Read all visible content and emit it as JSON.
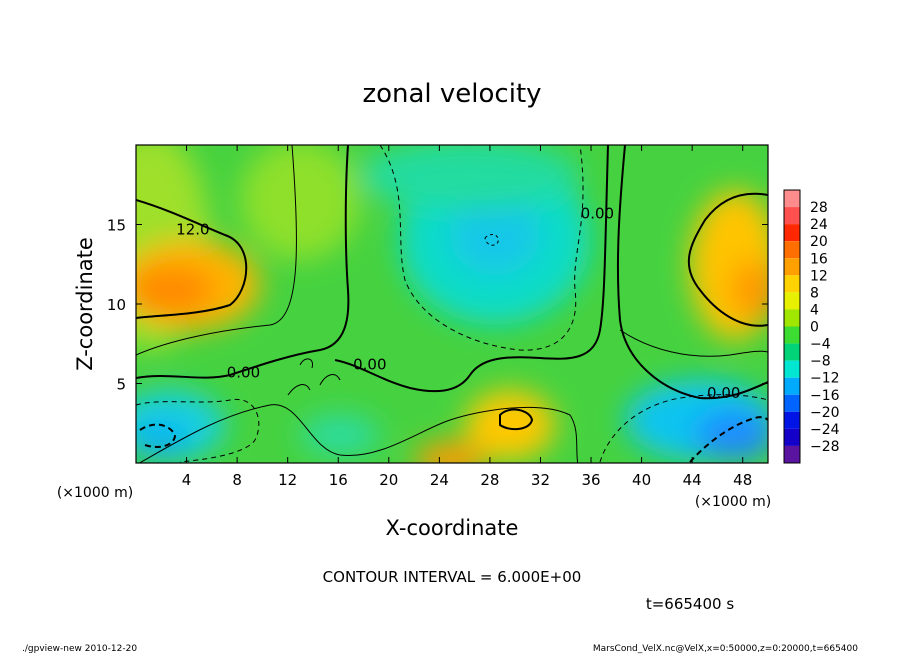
{
  "chart_data": {
    "type": "heatmap",
    "title": "zonal velocity",
    "xlabel": "X-coordinate",
    "ylabel": "Z-coordinate",
    "x_unit": "(×1000 m)",
    "y_unit": "(×1000 m)",
    "x_ticks": [
      4,
      8,
      12,
      16,
      20,
      24,
      28,
      32,
      36,
      40,
      44,
      48
    ],
    "y_ticks": [
      5,
      10,
      15
    ],
    "xlim": [
      0,
      50
    ],
    "ylim": [
      0,
      20
    ],
    "colorbar": {
      "levels": [
        28,
        24,
        20,
        16,
        12,
        8,
        4,
        0,
        -4,
        -8,
        -12,
        -16,
        -20,
        -24,
        -28
      ],
      "colors": [
        "#ff8c8c",
        "#ff5050",
        "#ff2800",
        "#ff6e00",
        "#ffa000",
        "#ffd200",
        "#e6f000",
        "#a0e600",
        "#3cdc32",
        "#00d278",
        "#00e6d2",
        "#00aaff",
        "#0064ff",
        "#0014e6",
        "#1400c8",
        "#5a14a0"
      ]
    },
    "contour_labels": [
      {
        "text": "12.0",
        "x": 4.5,
        "z": 14.5
      },
      {
        "text": "0.00",
        "x": 36.5,
        "z": 15.5
      },
      {
        "text": "0.00",
        "x": 8.5,
        "z": 5.5
      },
      {
        "text": "0.00",
        "x": 18.5,
        "z": 6.0
      },
      {
        "text": "0.00",
        "x": 46.5,
        "z": 4.2
      }
    ],
    "contour_interval": "CONTOUR INTERVAL = 6.000E+00",
    "time": "t=665400 s"
  },
  "footer": {
    "left": "./gpview-new   2010-12-20",
    "right": "MarsCond_VelX.nc@VelX,x=0:50000,z=0:20000,t=665400"
  }
}
